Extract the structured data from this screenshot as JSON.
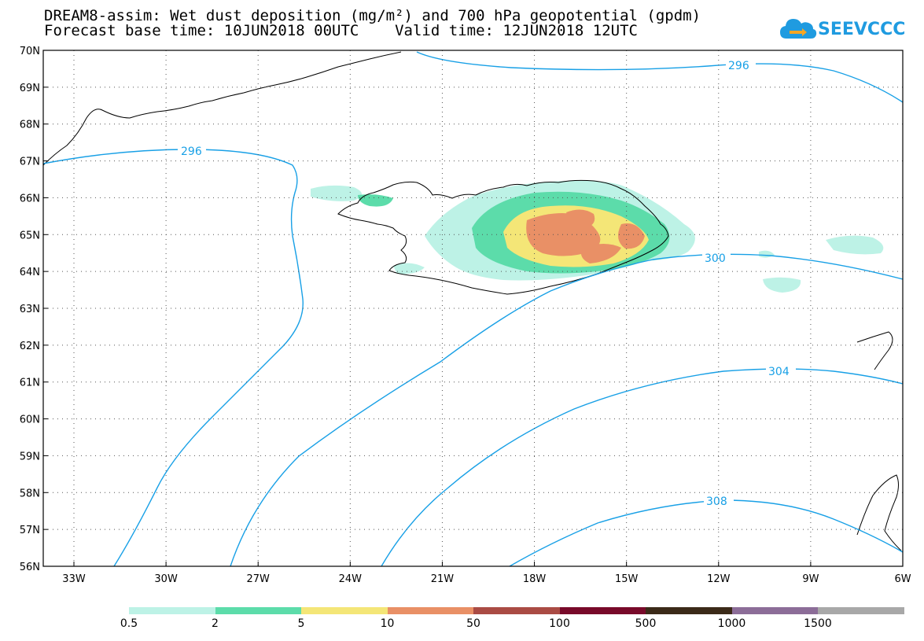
{
  "title": {
    "line1": "DREAM8-assim: Wet dust deposition (mg/m²) and 700 hPa geopotential (gpdm)",
    "line2": "Forecast base time: 10JUN2018 00UTC    Valid time: 12JUN2018 12UTC"
  },
  "logo": {
    "text": "SEEVCCC",
    "icon": "cloud-arrow-icon",
    "color": "#1f9be0"
  },
  "lat_labels": [
    "70N",
    "69N",
    "68N",
    "67N",
    "66N",
    "65N",
    "64N",
    "63N",
    "62N",
    "61N",
    "60N",
    "59N",
    "58N",
    "57N",
    "56N"
  ],
  "lon_labels": [
    "33W",
    "30W",
    "27W",
    "24W",
    "21W",
    "18W",
    "15W",
    "12W",
    "9W",
    "6W"
  ],
  "contours": {
    "color": "#18a0e6",
    "labels": [
      "296",
      "296",
      "300",
      "304",
      "308"
    ]
  },
  "colorbar": {
    "labels": [
      "0.5",
      "2",
      "5",
      "10",
      "50",
      "100",
      "500",
      "1000",
      "1500"
    ],
    "colors": [
      "#bdf2e6",
      "#5cdcaa",
      "#f4e677",
      "#e99066",
      "#aa4b44",
      "#780a2a",
      "#3b2a18",
      "#8c6d98",
      "#a8a8a8"
    ]
  },
  "chart_data": {
    "type": "map",
    "region": {
      "lon_range": [
        "34.5W",
        "6W"
      ],
      "lat_range": [
        "56N",
        "70N"
      ]
    },
    "field": "Wet dust deposition (mg/m²)",
    "contour_field": "700 hPa geopotential (gpdm)",
    "contour_levels": [
      296,
      300,
      304,
      308
    ]
  }
}
